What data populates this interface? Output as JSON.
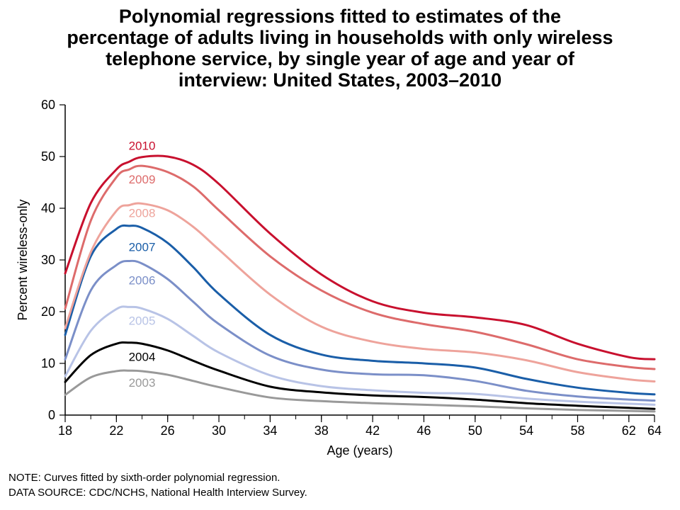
{
  "chart_data": {
    "type": "line",
    "title_lines": [
      "Polynomial regressions fitted to estimates of the",
      "percentage of adults living in households with only wireless",
      "telephone service, by single year of age and year of",
      "interview: United States, 2003–2010"
    ],
    "xlabel": "Age (years)",
    "ylabel": "Percent wireless-only",
    "xlim": [
      18,
      64
    ],
    "ylim": [
      0,
      60
    ],
    "x_ticks": [
      18,
      22,
      26,
      30,
      34,
      38,
      42,
      46,
      50,
      54,
      58,
      62,
      64
    ],
    "y_ticks": [
      0,
      10,
      20,
      30,
      40,
      50,
      60
    ],
    "x": [
      18,
      20,
      22,
      23,
      24,
      26,
      28,
      30,
      34,
      38,
      42,
      46,
      50,
      54,
      58,
      62,
      64
    ],
    "series": [
      {
        "name": "2010",
        "color": "#c8102e",
        "label_at": [
          24,
          51.3
        ],
        "values": [
          27.4,
          41.0,
          47.5,
          49.0,
          49.9,
          50.0,
          48.4,
          44.7,
          35.1,
          27.2,
          22.0,
          19.8,
          18.9,
          17.4,
          13.8,
          11.2,
          10.8
        ]
      },
      {
        "name": "2009",
        "color": "#dd6b6b",
        "label_at": [
          24,
          44.8
        ],
        "values": [
          20.6,
          37.6,
          46.0,
          47.5,
          48.2,
          47.0,
          44.2,
          39.6,
          30.7,
          24.1,
          19.8,
          17.6,
          16.1,
          13.7,
          10.8,
          9.3,
          8.9
        ]
      },
      {
        "name": "2008",
        "color": "#eea39b",
        "label_at": [
          24,
          38.3
        ],
        "values": [
          16.8,
          31.5,
          39.5,
          40.6,
          40.9,
          39.6,
          36.4,
          32.0,
          23.3,
          17.1,
          14.2,
          12.8,
          12.1,
          10.6,
          8.3,
          6.9,
          6.5
        ]
      },
      {
        "name": "2007",
        "color": "#1a5ea8",
        "label_at": [
          24,
          31.7
        ],
        "values": [
          15.5,
          30.7,
          36.0,
          36.6,
          36.2,
          33.3,
          28.6,
          23.4,
          15.5,
          11.7,
          10.5,
          10.0,
          9.2,
          7.0,
          5.3,
          4.3,
          4.0
        ]
      },
      {
        "name": "2006",
        "color": "#7b8fc8",
        "label_at": [
          24,
          25.3
        ],
        "values": [
          10.8,
          24.1,
          29.0,
          29.8,
          29.3,
          26.3,
          21.9,
          17.6,
          11.5,
          8.8,
          7.9,
          7.7,
          6.6,
          4.7,
          3.6,
          3.0,
          2.8
        ]
      },
      {
        "name": "2005",
        "color": "#b8c3e6",
        "label_at": [
          24,
          17.5
        ],
        "values": [
          7.5,
          16.3,
          20.5,
          20.9,
          20.6,
          18.6,
          15.3,
          12.1,
          7.7,
          5.6,
          4.8,
          4.3,
          4.1,
          3.2,
          2.6,
          2.2,
          2.0
        ]
      },
      {
        "name": "2004",
        "color": "#000000",
        "label_at": [
          24,
          10.5
        ],
        "values": [
          6.4,
          11.6,
          13.8,
          14.0,
          13.8,
          12.5,
          10.5,
          8.6,
          5.5,
          4.4,
          3.8,
          3.5,
          3.0,
          2.3,
          1.8,
          1.4,
          1.2
        ]
      },
      {
        "name": "2003",
        "color": "#999999",
        "label_at": [
          24,
          5.5
        ],
        "values": [
          3.9,
          7.3,
          8.5,
          8.6,
          8.5,
          7.8,
          6.6,
          5.4,
          3.4,
          2.7,
          2.3,
          2.0,
          1.7,
          1.3,
          1.0,
          0.8,
          0.7
        ]
      }
    ],
    "legend": "labels beside curves",
    "grid": false
  },
  "notes": {
    "note": "NOTE: Curves fitted by sixth-order polynomial regression.",
    "source": "DATA SOURCE: CDC/NCHS, National Health Interview Survey."
  }
}
